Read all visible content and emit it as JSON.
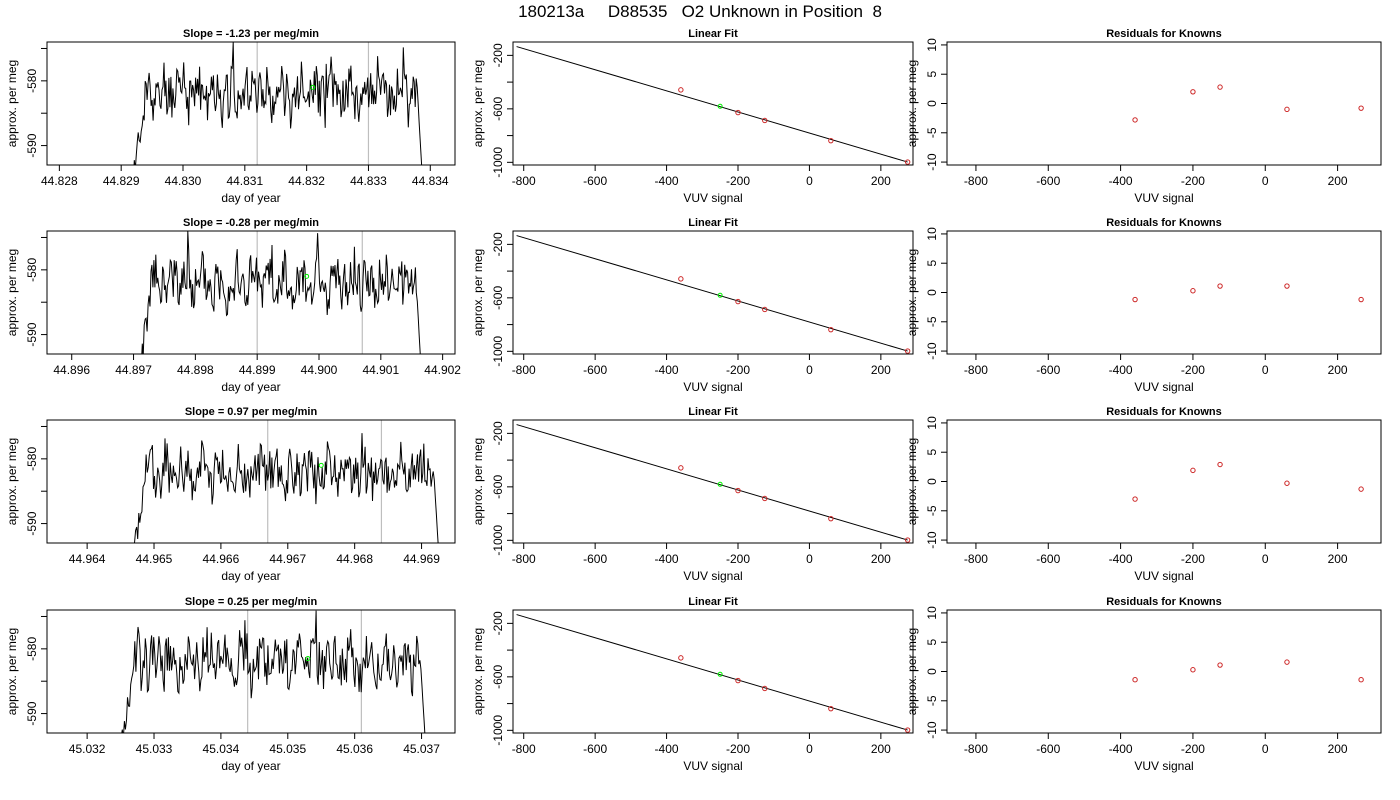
{
  "page": {
    "title": "180213a     D88535   O2 Unknown in Position  8"
  },
  "colors": {
    "trace": "#000000",
    "vline": "#bebebe",
    "known_point": "#cd2626",
    "unknown_point": "#00ee00",
    "fit_line": "#000000"
  },
  "chart_data": [
    {
      "type": "line",
      "title": "Slope =  -1.23  per meg/min",
      "xlabel": "day of year",
      "ylabel": "approx. per meg",
      "xlim": [
        44.8278,
        44.8344
      ],
      "ylim": [
        -593,
        -574
      ],
      "xticks": [
        {
          "v": 44.828,
          "label": "44.828"
        },
        {
          "v": 44.829,
          "label": "44.829"
        },
        {
          "v": 44.83,
          "label": "44.830"
        },
        {
          "v": 44.831,
          "label": "44.831"
        },
        {
          "v": 44.832,
          "label": "44.832"
        },
        {
          "v": 44.833,
          "label": "44.833"
        },
        {
          "v": 44.834,
          "label": "44.834"
        }
      ],
      "yticks": [
        {
          "v": -590,
          "label": "-590"
        },
        {
          "v": -585,
          "label": ""
        },
        {
          "v": -580,
          "label": "-580"
        },
        {
          "v": -575,
          "label": ""
        }
      ],
      "x_start": 44.8291,
      "x_end": 44.8339,
      "vlines": [
        44.8312,
        44.833
      ],
      "unknown_point": {
        "x": 44.8321,
        "y": -581.0
      },
      "seed": 11
    },
    {
      "type": "scatter",
      "title": "Linear Fit",
      "xlabel": "VUV signal",
      "ylabel": "approx. per meg",
      "xlim": [
        -830,
        290
      ],
      "ylim": [
        -1020,
        -100
      ],
      "xticks": [
        {
          "v": -800,
          "label": "-800"
        },
        {
          "v": -600,
          "label": "-600"
        },
        {
          "v": -400,
          "label": "-400"
        },
        {
          "v": -200,
          "label": "-200"
        },
        {
          "v": 0,
          "label": "0"
        },
        {
          "v": 200,
          "label": "200"
        }
      ],
      "yticks": [
        {
          "v": -1000,
          "label": "-1000"
        },
        {
          "v": -800,
          "label": ""
        },
        {
          "v": -600,
          "label": "-600"
        },
        {
          "v": -400,
          "label": ""
        },
        {
          "v": -200,
          "label": "-200"
        }
      ],
      "fit_line": {
        "x": [
          -820,
          275
        ],
        "y": [
          -134,
          -998
        ]
      },
      "points": [
        {
          "x": -360,
          "y": -458
        },
        {
          "x": -200,
          "y": -628
        },
        {
          "x": -125,
          "y": -687
        },
        {
          "x": 60,
          "y": -838
        },
        {
          "x": 275,
          "y": -998
        }
      ],
      "unknown_point": {
        "x": -250,
        "y": -581
      }
    },
    {
      "type": "scatter",
      "title": "Residuals for Knowns",
      "xlabel": "VUV signal",
      "ylabel": "approx. per meg",
      "xlim": [
        -880,
        320
      ],
      "ylim": [
        -10.5,
        10.5
      ],
      "xticks": [
        {
          "v": -800,
          "label": "-800"
        },
        {
          "v": -600,
          "label": "-600"
        },
        {
          "v": -400,
          "label": "-400"
        },
        {
          "v": -200,
          "label": "-200"
        },
        {
          "v": 0,
          "label": "0"
        },
        {
          "v": 200,
          "label": "200"
        }
      ],
      "yticks": [
        {
          "v": -10,
          "label": "-10"
        },
        {
          "v": -5,
          "label": "-5"
        },
        {
          "v": 0,
          "label": "0"
        },
        {
          "v": 5,
          "label": "5"
        },
        {
          "v": 10,
          "label": "10"
        }
      ],
      "points": [
        {
          "x": -360,
          "y": -2.8
        },
        {
          "x": -200,
          "y": 2.0
        },
        {
          "x": -125,
          "y": 2.8
        },
        {
          "x": 60,
          "y": -1.0
        },
        {
          "x": 265,
          "y": -0.8
        }
      ]
    },
    {
      "type": "line",
      "title": "Slope =  -0.28  per meg/min",
      "xlabel": "day of year",
      "ylabel": "approx. per meg",
      "xlim": [
        44.8956,
        44.9022
      ],
      "ylim": [
        -593,
        -574
      ],
      "xticks": [
        {
          "v": 44.896,
          "label": "44.896"
        },
        {
          "v": 44.897,
          "label": "44.897"
        },
        {
          "v": 44.898,
          "label": "44.898"
        },
        {
          "v": 44.899,
          "label": "44.899"
        },
        {
          "v": 44.9,
          "label": "44.900"
        },
        {
          "v": 44.901,
          "label": "44.901"
        },
        {
          "v": 44.902,
          "label": "44.902"
        }
      ],
      "yticks": [
        {
          "v": -590,
          "label": "-590"
        },
        {
          "v": -585,
          "label": ""
        },
        {
          "v": -580,
          "label": "-580"
        },
        {
          "v": -575,
          "label": ""
        }
      ],
      "x_start": 44.897,
      "x_end": 44.9017,
      "vlines": [
        44.899,
        44.9007
      ],
      "unknown_point": {
        "x": 44.8998,
        "y": -581.0
      },
      "seed": 23
    },
    {
      "type": "scatter",
      "title": "Linear Fit",
      "xlabel": "VUV signal",
      "ylabel": "approx. per meg",
      "xlim": [
        -830,
        290
      ],
      "ylim": [
        -1020,
        -100
      ],
      "xticks": [
        {
          "v": -800,
          "label": "-800"
        },
        {
          "v": -600,
          "label": "-600"
        },
        {
          "v": -400,
          "label": "-400"
        },
        {
          "v": -200,
          "label": "-200"
        },
        {
          "v": 0,
          "label": "0"
        },
        {
          "v": 200,
          "label": "200"
        }
      ],
      "yticks": [
        {
          "v": -1000,
          "label": "-1000"
        },
        {
          "v": -800,
          "label": ""
        },
        {
          "v": -600,
          "label": "-600"
        },
        {
          "v": -400,
          "label": ""
        },
        {
          "v": -200,
          "label": "-200"
        }
      ],
      "fit_line": {
        "x": [
          -820,
          275
        ],
        "y": [
          -134,
          -998
        ]
      },
      "points": [
        {
          "x": -360,
          "y": -458
        },
        {
          "x": -200,
          "y": -628
        },
        {
          "x": -125,
          "y": -687
        },
        {
          "x": 60,
          "y": -838
        },
        {
          "x": 275,
          "y": -998
        }
      ],
      "unknown_point": {
        "x": -250,
        "y": -581
      }
    },
    {
      "type": "scatter",
      "title": "Residuals for Knowns",
      "xlabel": "VUV signal",
      "ylabel": "approx. per meg",
      "xlim": [
        -880,
        320
      ],
      "ylim": [
        -10.5,
        10.5
      ],
      "xticks": [
        {
          "v": -800,
          "label": "-800"
        },
        {
          "v": -600,
          "label": "-600"
        },
        {
          "v": -400,
          "label": "-400"
        },
        {
          "v": -200,
          "label": "-200"
        },
        {
          "v": 0,
          "label": "0"
        },
        {
          "v": 200,
          "label": "200"
        }
      ],
      "yticks": [
        {
          "v": -10,
          "label": "-10"
        },
        {
          "v": -5,
          "label": "-5"
        },
        {
          "v": 0,
          "label": "0"
        },
        {
          "v": 5,
          "label": "5"
        },
        {
          "v": 10,
          "label": "10"
        }
      ],
      "points": [
        {
          "x": -360,
          "y": -1.2
        },
        {
          "x": -200,
          "y": 0.3
        },
        {
          "x": -125,
          "y": 1.1
        },
        {
          "x": 60,
          "y": 1.1
        },
        {
          "x": 265,
          "y": -1.2
        }
      ]
    },
    {
      "type": "line",
      "title": "Slope =  0.97  per meg/min",
      "xlabel": "day of year",
      "ylabel": "approx. per meg",
      "xlim": [
        44.9634,
        44.9695
      ],
      "ylim": [
        -593,
        -574
      ],
      "xticks": [
        {
          "v": 44.964,
          "label": "44.964"
        },
        {
          "v": 44.965,
          "label": "44.965"
        },
        {
          "v": 44.966,
          "label": "44.966"
        },
        {
          "v": 44.967,
          "label": "44.967"
        },
        {
          "v": 44.968,
          "label": "44.968"
        },
        {
          "v": 44.969,
          "label": "44.969"
        }
      ],
      "yticks": [
        {
          "v": -590,
          "label": "-590"
        },
        {
          "v": -585,
          "label": ""
        },
        {
          "v": -580,
          "label": "-580"
        },
        {
          "v": -575,
          "label": ""
        }
      ],
      "x_start": 44.9646,
      "x_end": 44.9693,
      "vlines": [
        44.9667,
        44.9684
      ],
      "unknown_point": {
        "x": 44.9675,
        "y": -581.0
      },
      "seed": 37
    },
    {
      "type": "scatter",
      "title": "Linear Fit",
      "xlabel": "VUV signal",
      "ylabel": "approx. per meg",
      "xlim": [
        -830,
        290
      ],
      "ylim": [
        -1020,
        -100
      ],
      "xticks": [
        {
          "v": -800,
          "label": "-800"
        },
        {
          "v": -600,
          "label": "-600"
        },
        {
          "v": -400,
          "label": "-400"
        },
        {
          "v": -200,
          "label": "-200"
        },
        {
          "v": 0,
          "label": "0"
        },
        {
          "v": 200,
          "label": "200"
        }
      ],
      "yticks": [
        {
          "v": -1000,
          "label": "-1000"
        },
        {
          "v": -800,
          "label": ""
        },
        {
          "v": -600,
          "label": "-600"
        },
        {
          "v": -400,
          "label": ""
        },
        {
          "v": -200,
          "label": "-200"
        }
      ],
      "fit_line": {
        "x": [
          -820,
          275
        ],
        "y": [
          -134,
          -998
        ]
      },
      "points": [
        {
          "x": -360,
          "y": -458
        },
        {
          "x": -200,
          "y": -628
        },
        {
          "x": -125,
          "y": -687
        },
        {
          "x": 60,
          "y": -838
        },
        {
          "x": 275,
          "y": -998
        }
      ],
      "unknown_point": {
        "x": -250,
        "y": -581
      }
    },
    {
      "type": "scatter",
      "title": "Residuals for Knowns",
      "xlabel": "VUV signal",
      "ylabel": "approx. per meg",
      "xlim": [
        -880,
        320
      ],
      "ylim": [
        -10.5,
        10.5
      ],
      "xticks": [
        {
          "v": -800,
          "label": "-800"
        },
        {
          "v": -600,
          "label": "-600"
        },
        {
          "v": -400,
          "label": "-400"
        },
        {
          "v": -200,
          "label": "-200"
        },
        {
          "v": 0,
          "label": "0"
        },
        {
          "v": 200,
          "label": "200"
        }
      ],
      "yticks": [
        {
          "v": -10,
          "label": "-10"
        },
        {
          "v": -5,
          "label": "-5"
        },
        {
          "v": 0,
          "label": "0"
        },
        {
          "v": 5,
          "label": "5"
        },
        {
          "v": 10,
          "label": "10"
        }
      ],
      "points": [
        {
          "x": -360,
          "y": -3.0
        },
        {
          "x": -200,
          "y": 1.9
        },
        {
          "x": -125,
          "y": 2.9
        },
        {
          "x": 60,
          "y": -0.3
        },
        {
          "x": 265,
          "y": -1.3
        }
      ]
    },
    {
      "type": "line",
      "title": "Slope =  0.25  per meg/min",
      "xlabel": "day of year",
      "ylabel": "approx. per meg",
      "xlim": [
        45.0314,
        45.0375
      ],
      "ylim": [
        -593,
        -574
      ],
      "xticks": [
        {
          "v": 45.032,
          "label": "45.032"
        },
        {
          "v": 45.033,
          "label": "45.033"
        },
        {
          "v": 45.034,
          "label": "45.034"
        },
        {
          "v": 45.035,
          "label": "45.035"
        },
        {
          "v": 45.036,
          "label": "45.036"
        },
        {
          "v": 45.037,
          "label": "45.037"
        }
      ],
      "yticks": [
        {
          "v": -590,
          "label": "-590"
        },
        {
          "v": -585,
          "label": ""
        },
        {
          "v": -580,
          "label": "-580"
        },
        {
          "v": -575,
          "label": ""
        }
      ],
      "x_start": 45.0324,
      "x_end": 45.0371,
      "vlines": [
        45.0344,
        45.0361
      ],
      "unknown_point": {
        "x": 45.0353,
        "y": -581.5
      },
      "seed": 53
    },
    {
      "type": "scatter",
      "title": "Linear Fit",
      "xlabel": "VUV signal",
      "ylabel": "approx. per meg",
      "xlim": [
        -830,
        290
      ],
      "ylim": [
        -1020,
        -100
      ],
      "xticks": [
        {
          "v": -800,
          "label": "-800"
        },
        {
          "v": -600,
          "label": "-600"
        },
        {
          "v": -400,
          "label": "-400"
        },
        {
          "v": -200,
          "label": "-200"
        },
        {
          "v": 0,
          "label": "0"
        },
        {
          "v": 200,
          "label": "200"
        }
      ],
      "yticks": [
        {
          "v": -1000,
          "label": "-1000"
        },
        {
          "v": -800,
          "label": ""
        },
        {
          "v": -600,
          "label": "-600"
        },
        {
          "v": -400,
          "label": ""
        },
        {
          "v": -200,
          "label": "-200"
        }
      ],
      "fit_line": {
        "x": [
          -820,
          275
        ],
        "y": [
          -134,
          -998
        ]
      },
      "points": [
        {
          "x": -360,
          "y": -458
        },
        {
          "x": -200,
          "y": -628
        },
        {
          "x": -125,
          "y": -687
        },
        {
          "x": 60,
          "y": -838
        },
        {
          "x": 275,
          "y": -998
        }
      ],
      "unknown_point": {
        "x": -250,
        "y": -581
      }
    },
    {
      "type": "scatter",
      "title": "Residuals for Knowns",
      "xlabel": "VUV signal",
      "ylabel": "approx. per meg",
      "xlim": [
        -880,
        320
      ],
      "ylim": [
        -10.5,
        10.5
      ],
      "xticks": [
        {
          "v": -800,
          "label": "-800"
        },
        {
          "v": -600,
          "label": "-600"
        },
        {
          "v": -400,
          "label": "-400"
        },
        {
          "v": -200,
          "label": "-200"
        },
        {
          "v": 0,
          "label": "0"
        },
        {
          "v": 200,
          "label": "200"
        }
      ],
      "yticks": [
        {
          "v": -10,
          "label": "-10"
        },
        {
          "v": -5,
          "label": "-5"
        },
        {
          "v": 0,
          "label": "0"
        },
        {
          "v": 5,
          "label": "5"
        },
        {
          "v": 10,
          "label": "10"
        }
      ],
      "points": [
        {
          "x": -360,
          "y": -1.4
        },
        {
          "x": -200,
          "y": 0.3
        },
        {
          "x": -125,
          "y": 1.1
        },
        {
          "x": 60,
          "y": 1.6
        },
        {
          "x": 265,
          "y": -1.4
        }
      ]
    }
  ]
}
